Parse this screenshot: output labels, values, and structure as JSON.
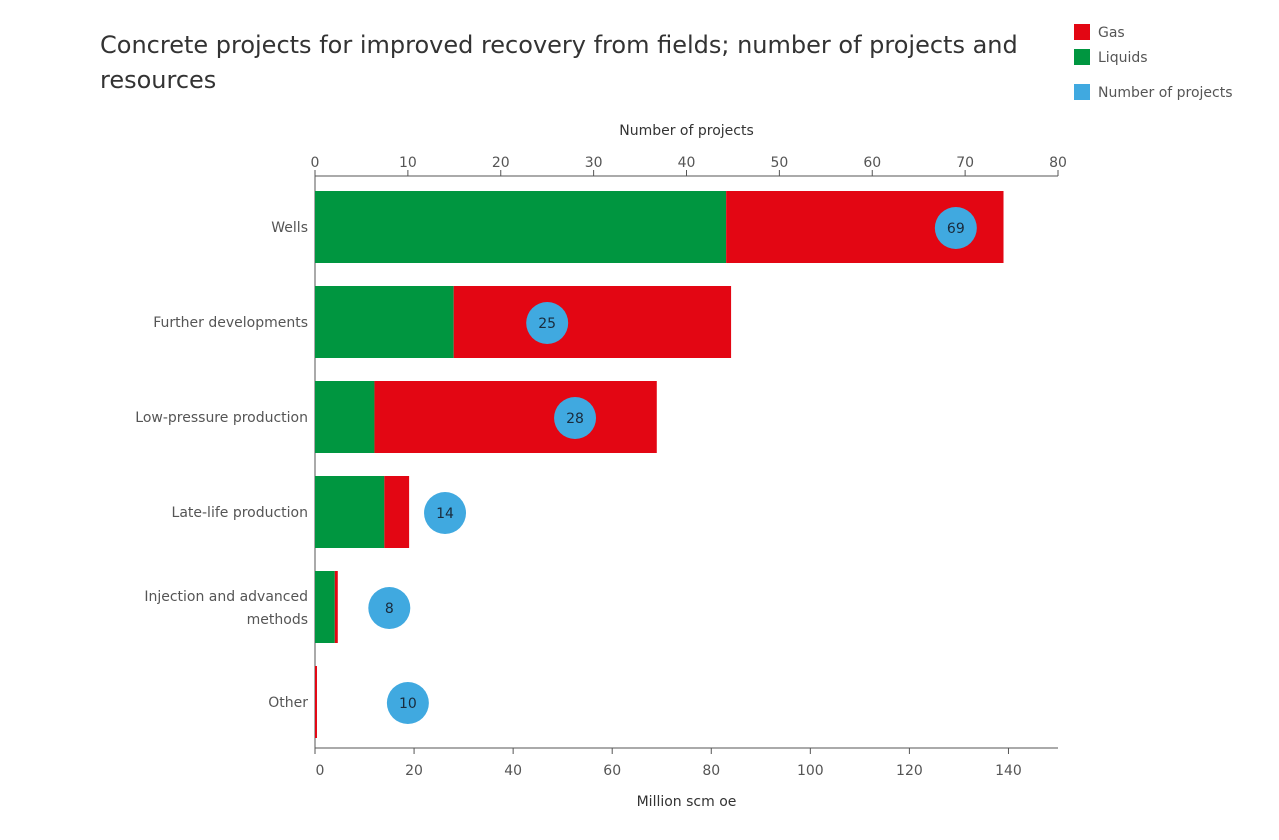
{
  "title": "Concrete projects for improved recovery from fields; number of projects and resources",
  "legend": {
    "items": [
      {
        "label": "Gas",
        "color": "#e30613"
      },
      {
        "label": "Liquids",
        "color": "#009640"
      },
      {
        "label": "Number of projects",
        "color": "#40a9e0"
      }
    ]
  },
  "chart_data": {
    "type": "bar",
    "orientation": "horizontal",
    "stacked": true,
    "categories": [
      "Wells",
      "Further developments",
      "Low-pressure production",
      "Late-life production",
      "Injection and advanced methods",
      "Other"
    ],
    "series": [
      {
        "name": "Liquids",
        "color": "#009640",
        "values": [
          83,
          28,
          12,
          14,
          4,
          0
        ]
      },
      {
        "name": "Gas",
        "color": "#e30613",
        "values": [
          56,
          56,
          57,
          5,
          0.6,
          0.4
        ]
      }
    ],
    "points": {
      "name": "Number of projects",
      "color": "#40a9e0",
      "values": [
        69,
        25,
        28,
        14,
        8,
        10
      ]
    },
    "xlabel": "Million scm oe",
    "xlim": [
      0,
      150
    ],
    "xticks": [
      0,
      20,
      40,
      60,
      80,
      100,
      120,
      140
    ],
    "x2label": "Number of projects",
    "x2lim": [
      0,
      80
    ],
    "x2ticks": [
      0,
      10,
      20,
      30,
      40,
      50,
      60,
      70,
      80
    ],
    "grid": false,
    "legend_position": "top-right"
  }
}
